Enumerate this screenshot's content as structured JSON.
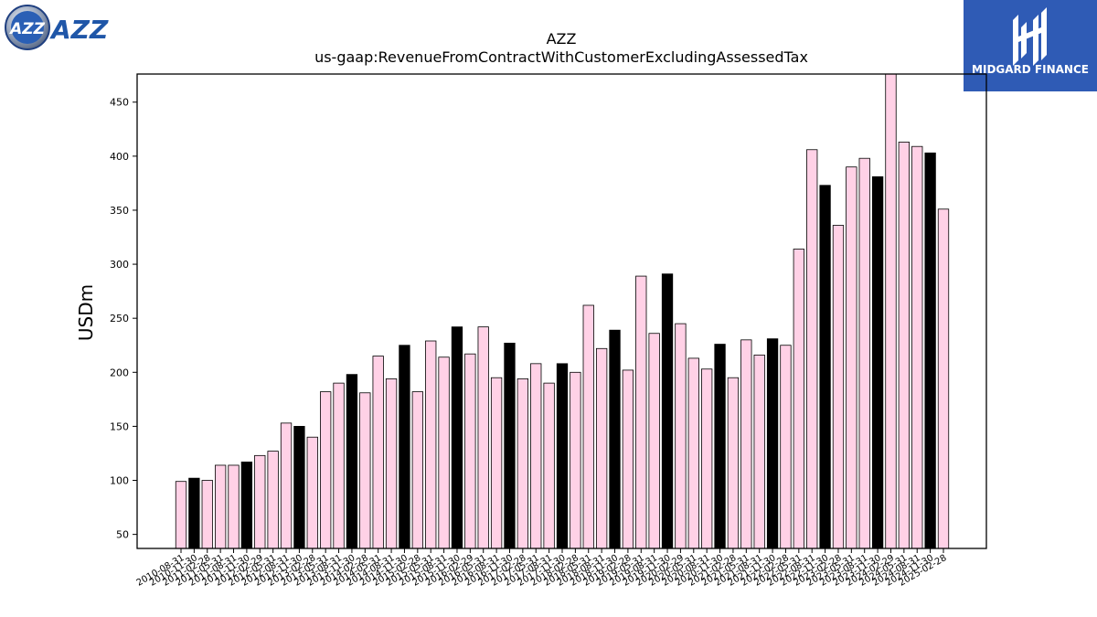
{
  "logos": {
    "left_text": "AZZ",
    "right_text": "MIDGARD FINANCE"
  },
  "colors": {
    "bar_fill": "#ffd1e6",
    "bar_highlight": "#000000",
    "bar_edge": "#000000",
    "axis": "#000000",
    "brand_blue": "#1f56a8",
    "midgard_bg": "#2f5bb5"
  },
  "chart_data": {
    "type": "bar",
    "title": "AZZ",
    "subtitle": "us-gaap:RevenueFromContractWithCustomerExcludingAssessedTax",
    "xlabel": "",
    "ylabel": "USDm",
    "ylim": [
      37,
      476
    ],
    "yticks": [
      50,
      100,
      150,
      200,
      250,
      300,
      350,
      400,
      450
    ],
    "grid": false,
    "legend": "none",
    "categories": [
      "2010-08-31",
      "2010-11-30",
      "2011-02-28",
      "2011-05-31",
      "2011-08-31",
      "2011-11-30",
      "2012-02-29",
      "2012-05-31",
      "2012-08-31",
      "2012-11-30",
      "2013-02-28",
      "2013-05-31",
      "2013-08-31",
      "2013-11-30",
      "2014-02-28",
      "2014-05-31",
      "2014-08-31",
      "2014-11-30",
      "2015-02-28",
      "2015-05-31",
      "2015-08-31",
      "2015-11-30",
      "2016-02-29",
      "2016-05-31",
      "2016-08-31",
      "2016-11-30",
      "2017-02-28",
      "2017-05-31",
      "2017-08-31",
      "2017-11-30",
      "2018-02-28",
      "2018-05-31",
      "2018-08-31",
      "2018-11-30",
      "2019-02-28",
      "2019-05-31",
      "2019-08-31",
      "2019-11-30",
      "2020-02-29",
      "2020-05-31",
      "2020-08-31",
      "2020-11-30",
      "2021-02-28",
      "2021-05-31",
      "2021-08-31",
      "2021-11-30",
      "2022-02-28",
      "2022-05-31",
      "2022-08-31",
      "2022-11-30",
      "2023-02-28",
      "2023-05-31",
      "2023-08-31",
      "2023-11-30",
      "2024-02-29",
      "2024-05-31",
      "2024-08-31",
      "2024-11-30",
      "2025-02-28"
    ],
    "values": [
      99,
      102,
      100,
      114,
      114,
      117,
      123,
      127,
      153,
      150,
      140,
      182,
      190,
      198,
      181,
      215,
      194,
      225,
      182,
      229,
      214,
      242,
      217,
      242,
      195,
      227,
      194,
      208,
      190,
      208,
      200,
      262,
      222,
      239,
      202,
      289,
      236,
      291,
      245,
      213,
      203,
      226,
      195,
      230,
      216,
      231,
      225,
      314,
      406,
      373,
      336,
      390,
      398,
      381,
      476,
      413,
      409,
      403,
      351
    ],
    "highlight_every": 4,
    "highlight_offset": 1
  }
}
